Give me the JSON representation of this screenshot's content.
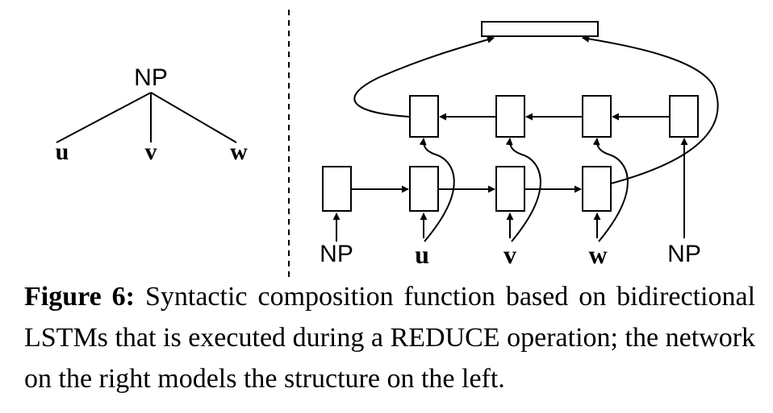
{
  "tree": {
    "root": "NP",
    "leaves": [
      "u",
      "v",
      "w"
    ]
  },
  "network": {
    "inputs": [
      "NP",
      "u",
      "v",
      "w",
      "NP"
    ]
  },
  "caption": {
    "label": "Figure 6:",
    "text_before": "Syntactic composition function based on bidirectional LSTMs that is executed during a",
    "operation": "REDUCE",
    "text_after": "operation; the network on the right models the structure on the left."
  }
}
